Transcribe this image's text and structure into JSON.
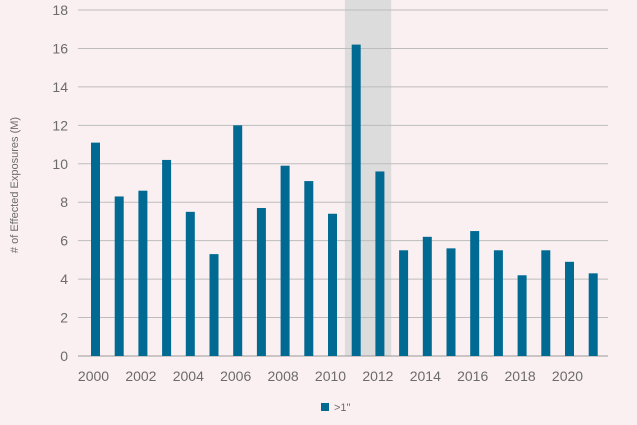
{
  "chart_data": {
    "type": "bar",
    "title": "",
    "xlabel": "",
    "ylabel": "# of Effected Exposures (M)",
    "ylim": [
      0,
      18
    ],
    "yticks": [
      0,
      2,
      4,
      6,
      8,
      10,
      12,
      14,
      16,
      18
    ],
    "grid": true,
    "legend_position": "bottom-center",
    "x": [
      2000,
      2001,
      2002,
      2003,
      2004,
      2005,
      2006,
      2007,
      2008,
      2009,
      2010,
      2011,
      2012,
      2013,
      2014,
      2015,
      2016,
      2017,
      2018,
      2019,
      2020,
      2021
    ],
    "x_tick_labels": [
      "2000",
      "2002",
      "2004",
      "2006",
      "2008",
      "2010",
      "2012",
      "2014",
      "2016",
      "2018",
      "2020"
    ],
    "series": [
      {
        "name": ">1\"",
        "values": [
          11.1,
          8.3,
          8.6,
          10.2,
          7.5,
          5.3,
          12.0,
          7.7,
          9.9,
          9.1,
          7.4,
          16.2,
          9.6,
          5.5,
          6.2,
          5.6,
          6.5,
          5.5,
          4.2,
          5.5,
          4.9,
          4.3
        ]
      }
    ],
    "highlight_band": {
      "from": 2011,
      "to": 2012
    },
    "colors": {
      "bar": "#006a93",
      "highlight": "#dcdcdc",
      "grid": "#bdbdbd",
      "text": "#6b6b6b",
      "background": "#fbf0f1"
    }
  }
}
